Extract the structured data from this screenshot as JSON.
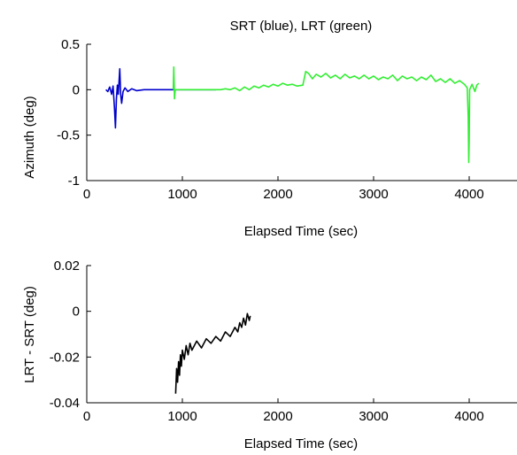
{
  "chart_data": [
    {
      "type": "line",
      "title": "SRT (blue),  LRT (green)",
      "xlabel": "Elapsed Time (sec)",
      "ylabel": "Azimuth (deg)",
      "xlim": [
        0,
        4500
      ],
      "ylim": [
        -1,
        0.5
      ],
      "xticks": [
        0,
        1000,
        2000,
        3000,
        4000
      ],
      "yticks": [
        0.5,
        0,
        -0.5,
        -1
      ],
      "xtick_labels": [
        "0",
        "1000",
        "2000",
        "3000",
        "4000"
      ],
      "ytick_labels": [
        "0.5",
        "0",
        "-0.5",
        "-1"
      ],
      "grid": false,
      "series": [
        {
          "color": "#0000cc",
          "points": [
            [
              200,
              0.0
            ],
            [
              220,
              -0.02
            ],
            [
              240,
              0.03
            ],
            [
              260,
              -0.05
            ],
            [
              275,
              0.04
            ],
            [
              290,
              -0.2
            ],
            [
              300,
              -0.42
            ],
            [
              310,
              -0.1
            ],
            [
              320,
              0.05
            ],
            [
              330,
              -0.05
            ],
            [
              345,
              0.23
            ],
            [
              355,
              -0.05
            ],
            [
              365,
              -0.15
            ],
            [
              380,
              -0.02
            ],
            [
              400,
              0.02
            ],
            [
              430,
              -0.02
            ],
            [
              470,
              0.01
            ],
            [
              520,
              -0.01
            ],
            [
              600,
              0.0
            ],
            [
              700,
              0.0
            ],
            [
              800,
              0.0
            ],
            [
              880,
              0.0
            ],
            [
              900,
              0.0
            ],
            [
              950,
              0.0
            ],
            [
              1000,
              0.0
            ],
            [
              1100,
              0.0
            ],
            [
              1200,
              0.0
            ],
            [
              1300,
              0.0
            ],
            [
              1350,
              0.0
            ]
          ]
        },
        {
          "color": "#33ee33",
          "points": [
            [
              905,
              0.0
            ],
            [
              910,
              0.25
            ],
            [
              918,
              -0.1
            ],
            [
              925,
              0.0
            ],
            [
              935,
              0.0
            ],
            [
              1100,
              0.0
            ],
            [
              1300,
              0.0
            ],
            [
              1400,
              0.0
            ],
            [
              1450,
              0.01
            ],
            [
              1500,
              0.0
            ],
            [
              1550,
              0.02
            ],
            [
              1600,
              -0.01
            ],
            [
              1650,
              0.03
            ],
            [
              1700,
              0.0
            ],
            [
              1750,
              0.04
            ],
            [
              1800,
              0.02
            ],
            [
              1850,
              0.05
            ],
            [
              1900,
              0.03
            ],
            [
              1950,
              0.06
            ],
            [
              2000,
              0.04
            ],
            [
              2050,
              0.07
            ],
            [
              2100,
              0.05
            ],
            [
              2150,
              0.06
            ],
            [
              2200,
              0.04
            ],
            [
              2260,
              0.05
            ],
            [
              2290,
              0.2
            ],
            [
              2320,
              0.18
            ],
            [
              2360,
              0.12
            ],
            [
              2400,
              0.17
            ],
            [
              2450,
              0.14
            ],
            [
              2500,
              0.18
            ],
            [
              2550,
              0.13
            ],
            [
              2600,
              0.16
            ],
            [
              2650,
              0.12
            ],
            [
              2700,
              0.17
            ],
            [
              2750,
              0.13
            ],
            [
              2800,
              0.15
            ],
            [
              2850,
              0.12
            ],
            [
              2900,
              0.16
            ],
            [
              2950,
              0.12
            ],
            [
              3000,
              0.15
            ],
            [
              3050,
              0.11
            ],
            [
              3100,
              0.14
            ],
            [
              3150,
              0.12
            ],
            [
              3200,
              0.16
            ],
            [
              3250,
              0.1
            ],
            [
              3300,
              0.15
            ],
            [
              3350,
              0.12
            ],
            [
              3400,
              0.14
            ],
            [
              3450,
              0.1
            ],
            [
              3500,
              0.14
            ],
            [
              3550,
              0.11
            ],
            [
              3600,
              0.16
            ],
            [
              3650,
              0.09
            ],
            [
              3700,
              0.12
            ],
            [
              3750,
              0.08
            ],
            [
              3800,
              0.12
            ],
            [
              3850,
              0.07
            ],
            [
              3900,
              0.1
            ],
            [
              3950,
              0.06
            ],
            [
              3980,
              0.02
            ],
            [
              3990,
              -0.3
            ],
            [
              3995,
              -0.8
            ],
            [
              4000,
              -0.55
            ],
            [
              4005,
              0.0
            ],
            [
              4030,
              0.06
            ],
            [
              4060,
              -0.02
            ],
            [
              4080,
              0.05
            ],
            [
              4100,
              0.07
            ]
          ]
        }
      ]
    },
    {
      "type": "line",
      "title": "",
      "xlabel": "Elapsed Time (sec)",
      "ylabel": "LRT - SRT (deg)",
      "xlim": [
        0,
        4500
      ],
      "ylim": [
        -0.04,
        0.02
      ],
      "xticks": [
        0,
        1000,
        2000,
        3000,
        4000
      ],
      "yticks": [
        0.02,
        0,
        -0.02,
        -0.04
      ],
      "xtick_labels": [
        "0",
        "1000",
        "2000",
        "3000",
        "4000"
      ],
      "ytick_labels": [
        "0.02",
        "0",
        "-0.02",
        "-0.04"
      ],
      "grid": false,
      "series": [
        {
          "color": "#000000",
          "points": [
            [
              930,
              -0.036
            ],
            [
              940,
              -0.025
            ],
            [
              950,
              -0.031
            ],
            [
              960,
              -0.022
            ],
            [
              970,
              -0.028
            ],
            [
              980,
              -0.019
            ],
            [
              990,
              -0.024
            ],
            [
              1000,
              -0.017
            ],
            [
              1020,
              -0.021
            ],
            [
              1040,
              -0.015
            ],
            [
              1060,
              -0.019
            ],
            [
              1080,
              -0.014
            ],
            [
              1100,
              -0.017
            ],
            [
              1150,
              -0.013
            ],
            [
              1200,
              -0.016
            ],
            [
              1250,
              -0.012
            ],
            [
              1300,
              -0.014
            ],
            [
              1350,
              -0.011
            ],
            [
              1400,
              -0.013
            ],
            [
              1450,
              -0.009
            ],
            [
              1500,
              -0.011
            ],
            [
              1550,
              -0.007
            ],
            [
              1580,
              -0.009
            ],
            [
              1600,
              -0.005
            ],
            [
              1620,
              -0.007
            ],
            [
              1640,
              -0.003
            ],
            [
              1660,
              -0.006
            ],
            [
              1680,
              -0.001
            ],
            [
              1700,
              -0.004
            ],
            [
              1710,
              -0.002
            ]
          ]
        }
      ]
    }
  ]
}
